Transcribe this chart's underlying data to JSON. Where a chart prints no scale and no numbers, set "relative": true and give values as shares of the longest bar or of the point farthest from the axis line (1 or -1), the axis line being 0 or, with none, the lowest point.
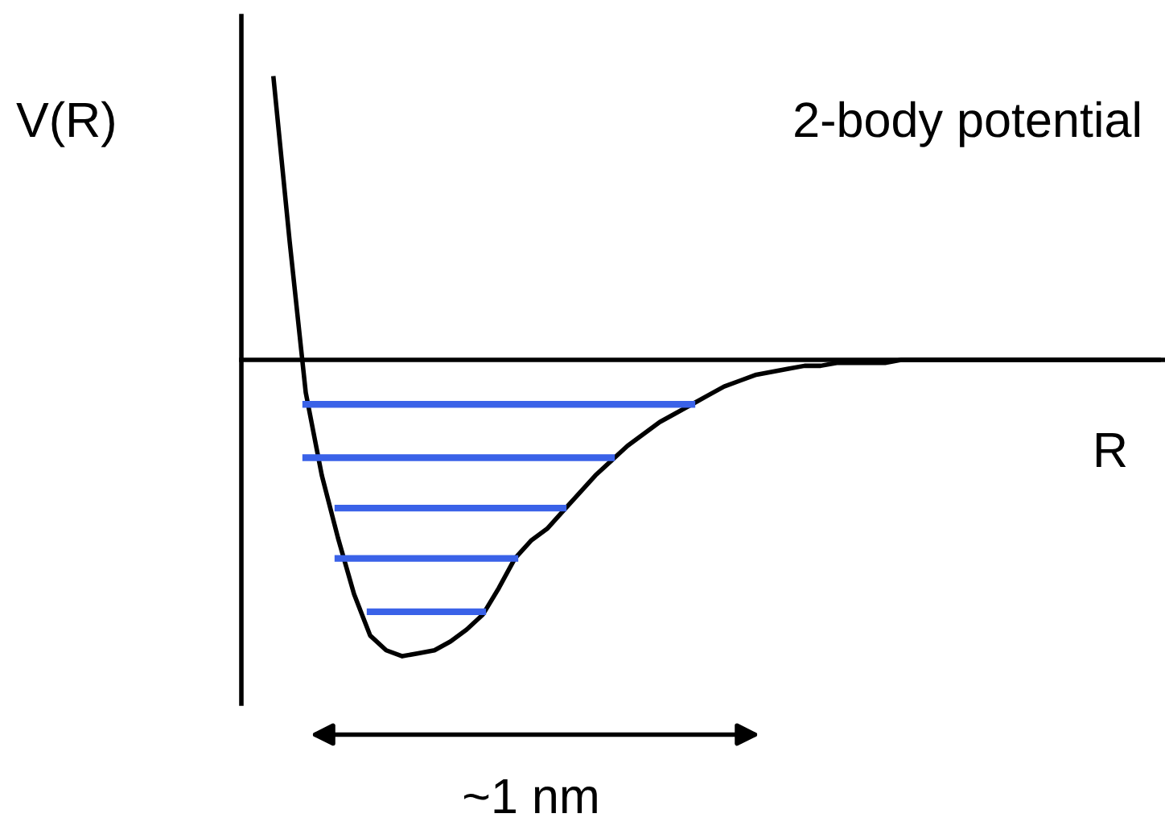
{
  "chart_data": {
    "type": "line",
    "relative": true,
    "title": "2-body potential",
    "ylabel": "V(R)",
    "xlabel": "R",
    "annotations": [
      "~1 nm"
    ],
    "legend": false,
    "marker": "none",
    "line_style": "solid",
    "categories": [
      null,
      null,
      null,
      null,
      null,
      null,
      null,
      null,
      null,
      null,
      null,
      null,
      null,
      null,
      null,
      null,
      null,
      null,
      null,
      null,
      null,
      null,
      null,
      null,
      null,
      null,
      null,
      null,
      null,
      null,
      null,
      null,
      null,
      null,
      null,
      null,
      null,
      null,
      null,
      null,
      null,
      null,
      null,
      null,
      null,
      null,
      null,
      null,
      null,
      null,
      null,
      null,
      null,
      null,
      null,
      null
    ],
    "series": [
      {
        "color": "#000000",
        "values": [
          0.95,
          0.4,
          -0.11,
          -0.39,
          -0.6,
          -0.79,
          -0.93,
          -0.98,
          -1.0,
          -0.99,
          -0.98,
          -0.95,
          -0.91,
          -0.86,
          -0.77,
          -0.67,
          -0.61,
          -0.57,
          -0.51,
          -0.45,
          -0.39,
          -0.34,
          -0.29,
          -0.25,
          -0.21,
          -0.18,
          -0.15,
          -0.12,
          -0.09,
          -0.07,
          -0.05,
          -0.04,
          -0.03,
          -0.02,
          -0.02,
          -0.01,
          -0.01,
          -0.01,
          -0.01,
          0,
          0,
          0,
          0,
          0,
          0,
          0,
          0,
          0,
          0,
          0,
          0,
          0,
          0,
          0,
          0,
          0
        ]
      },
      {
        "color": "#3a62e8",
        "values": [
          null,
          null,
          -0.15,
          -0.15,
          -0.15,
          -0.15,
          -0.15,
          -0.15,
          -0.15,
          -0.15,
          -0.15,
          -0.15,
          -0.15,
          -0.15,
          -0.15,
          -0.15,
          -0.15,
          -0.15,
          -0.15,
          -0.15,
          -0.15,
          -0.15,
          -0.15,
          -0.15,
          -0.15,
          -0.15,
          -0.15,
          null,
          null,
          null,
          null,
          null,
          null,
          null,
          null,
          null,
          null,
          null,
          null,
          null,
          null,
          null,
          null,
          null,
          null,
          null,
          null,
          null,
          null,
          null,
          null,
          null,
          null,
          null,
          null,
          null
        ]
      },
      {
        "color": "#3a62e8",
        "values": [
          null,
          null,
          -0.33,
          -0.33,
          -0.33,
          -0.33,
          -0.33,
          -0.33,
          -0.33,
          -0.33,
          -0.33,
          -0.33,
          -0.33,
          -0.33,
          -0.33,
          -0.33,
          -0.33,
          -0.33,
          -0.33,
          -0.33,
          -0.33,
          -0.33,
          null,
          null,
          null,
          null,
          null,
          null,
          null,
          null,
          null,
          null,
          null,
          null,
          null,
          null,
          null,
          null,
          null,
          null,
          null,
          null,
          null,
          null,
          null,
          null,
          null,
          null,
          null,
          null,
          null,
          null,
          null,
          null,
          null,
          null
        ]
      },
      {
        "color": "#3a62e8",
        "values": [
          null,
          null,
          null,
          null,
          -0.5,
          -0.5,
          -0.5,
          -0.5,
          -0.5,
          -0.5,
          -0.5,
          -0.5,
          -0.5,
          -0.5,
          -0.5,
          -0.5,
          -0.5,
          -0.5,
          -0.5,
          null,
          null,
          null,
          null,
          null,
          null,
          null,
          null,
          null,
          null,
          null,
          null,
          null,
          null,
          null,
          null,
          null,
          null,
          null,
          null,
          null,
          null,
          null,
          null,
          null,
          null,
          null,
          null,
          null,
          null,
          null,
          null,
          null,
          null,
          null,
          null,
          null
        ]
      },
      {
        "color": "#3a62e8",
        "values": [
          null,
          null,
          null,
          null,
          -0.67,
          -0.67,
          -0.67,
          -0.67,
          -0.67,
          -0.67,
          -0.67,
          -0.67,
          -0.67,
          -0.67,
          -0.67,
          -0.67,
          null,
          null,
          null,
          null,
          null,
          null,
          null,
          null,
          null,
          null,
          null,
          null,
          null,
          null,
          null,
          null,
          null,
          null,
          null,
          null,
          null,
          null,
          null,
          null,
          null,
          null,
          null,
          null,
          null,
          null,
          null,
          null,
          null,
          null,
          null,
          null,
          null,
          null,
          null,
          null
        ]
      },
      {
        "color": "#3a62e8",
        "values": [
          null,
          null,
          null,
          null,
          null,
          null,
          -0.85,
          -0.85,
          -0.85,
          -0.85,
          -0.85,
          -0.85,
          -0.85,
          -0.85,
          null,
          null,
          null,
          null,
          null,
          null,
          null,
          null,
          null,
          null,
          null,
          null,
          null,
          null,
          null,
          null,
          null,
          null,
          null,
          null,
          null,
          null,
          null,
          null,
          null,
          null,
          null,
          null,
          null,
          null,
          null,
          null,
          null,
          null,
          null,
          null,
          null,
          null,
          null,
          null,
          null,
          null
        ]
      }
    ]
  }
}
